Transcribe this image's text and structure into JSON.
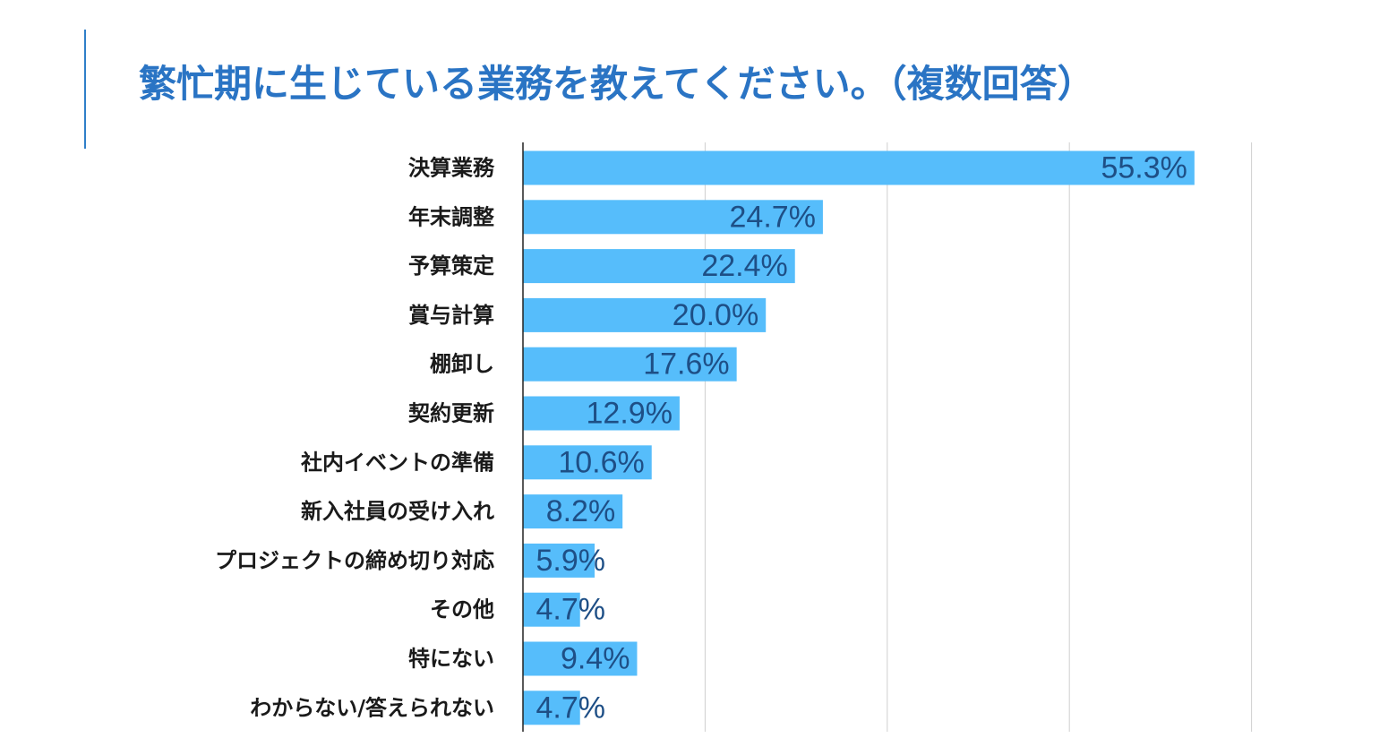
{
  "header": {
    "title": "繁忙期に生じている業務を教えてください。（複数回答）"
  },
  "colors": {
    "accent": "#2f7fc9",
    "title": "#2a74c4",
    "bar": "#56bdfb",
    "value_label": "#1e4f86",
    "gridline": "#cfcfcf",
    "axis": "#222222"
  },
  "chart_data": {
    "type": "bar",
    "orientation": "horizontal",
    "title": "繁忙期に生じている業務を教えてください。（複数回答）",
    "categories": [
      "決算業務",
      "年末調整",
      "予算策定",
      "賞与計算",
      "棚卸し",
      "契約更新",
      "社内イベントの準備",
      "新入社員の受け入れ",
      "プロジェクトの締め切り対応",
      "その他",
      "特にない",
      "わからない/答えられない"
    ],
    "values": [
      55.3,
      24.7,
      22.4,
      20.0,
      17.6,
      12.9,
      10.6,
      8.2,
      5.9,
      4.7,
      9.4,
      4.7
    ],
    "value_labels": [
      "55.3%",
      "24.7%",
      "22.4%",
      "20.0%",
      "17.6%",
      "12.9%",
      "10.6%",
      "8.2%",
      "5.9%",
      "4.7%",
      "9.4%",
      "4.7%"
    ],
    "xlim": [
      0,
      60
    ],
    "grid": true,
    "legend": "none",
    "xlabel": "",
    "ylabel": ""
  }
}
